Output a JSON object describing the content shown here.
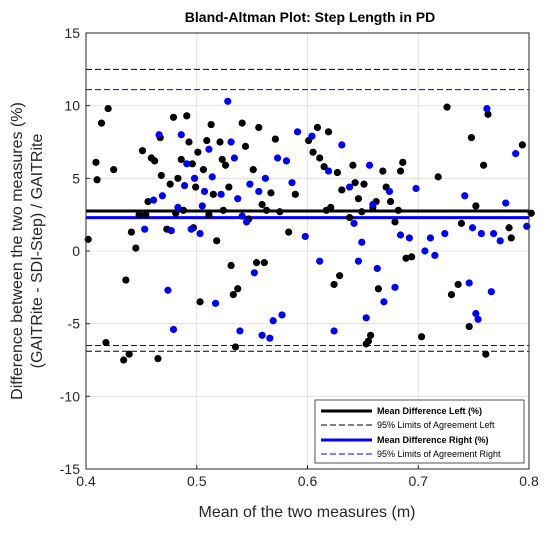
{
  "chart_data": {
    "type": "scatter",
    "title": "Bland-Altman Plot: Step Length in PD",
    "xlabel": "Mean of the two measures (m)",
    "ylabel_line1": "Difference between the two measures (%)",
    "ylabel_line2": "(GAITRite - SDI-Step) / GAITRite",
    "xlim": [
      0.4,
      0.8
    ],
    "ylim": [
      -15,
      15
    ],
    "xticks": [
      0.4,
      0.5,
      0.6,
      0.7,
      0.8
    ],
    "xtick_labels": [
      "0.4",
      "0.5",
      "0.6",
      "0.7",
      "0.8"
    ],
    "yticks": [
      -15,
      -10,
      -5,
      0,
      5,
      10,
      15
    ],
    "ytick_labels": [
      "-15",
      "-10",
      "-5",
      "0",
      "5",
      "10",
      "15"
    ],
    "grid": true,
    "legend_position": "bottom-right",
    "colors": {
      "left": "#000000",
      "right": "#0000ff"
    },
    "legend": [
      {
        "label": "Mean Difference Left (%)",
        "color": "#000000",
        "style": "solid"
      },
      {
        "label": "95% Limits of Agreement Left",
        "color": "#000000",
        "style": "dashed"
      },
      {
        "label": "Mean Difference Right (%)",
        "color": "#0000ff",
        "style": "solid"
      },
      {
        "label": "95% Limits of Agreement Right",
        "color": "#0000ff",
        "style": "dashed"
      }
    ],
    "reference_lines": [
      {
        "series": "left",
        "kind": "mean",
        "y": 2.75
      },
      {
        "series": "left",
        "kind": "upper_loa",
        "y": 12.5
      },
      {
        "series": "left",
        "kind": "lower_loa",
        "y": -6.9
      },
      {
        "series": "right",
        "kind": "mean",
        "y": 2.3
      },
      {
        "series": "right",
        "kind": "upper_loa",
        "y": 11.1
      },
      {
        "series": "right",
        "kind": "lower_loa",
        "y": -6.5
      }
    ],
    "series": [
      {
        "key": "left",
        "points": [
          [
            0.402,
            0.8
          ],
          [
            0.409,
            6.1
          ],
          [
            0.41,
            4.9
          ],
          [
            0.414,
            8.8
          ],
          [
            0.418,
            -6.3
          ],
          [
            0.42,
            9.8
          ],
          [
            0.425,
            5.6
          ],
          [
            0.434,
            -7.5
          ],
          [
            0.436,
            -2.0
          ],
          [
            0.439,
            -7.1
          ],
          [
            0.441,
            1.3
          ],
          [
            0.445,
            0.2
          ],
          [
            0.448,
            2.5
          ],
          [
            0.451,
            6.9
          ],
          [
            0.454,
            2.5
          ],
          [
            0.456,
            3.4
          ],
          [
            0.459,
            6.4
          ],
          [
            0.462,
            6.2
          ],
          [
            0.465,
            -7.4
          ],
          [
            0.467,
            7.8
          ],
          [
            0.468,
            5.2
          ],
          [
            0.473,
            1.5
          ],
          [
            0.476,
            4.6
          ],
          [
            0.479,
            9.2
          ],
          [
            0.481,
            2.6
          ],
          [
            0.483,
            5.0
          ],
          [
            0.486,
            6.3
          ],
          [
            0.488,
            2.8
          ],
          [
            0.491,
            9.3
          ],
          [
            0.493,
            7.5
          ],
          [
            0.496,
            6.0
          ],
          [
            0.497,
            1.6
          ],
          [
            0.499,
            4.4
          ],
          [
            0.501,
            6.8
          ],
          [
            0.503,
            -3.5
          ],
          [
            0.506,
            5.6
          ],
          [
            0.509,
            7.6
          ],
          [
            0.511,
            2.5
          ],
          [
            0.513,
            8.7
          ],
          [
            0.515,
            3.9
          ],
          [
            0.518,
            0.7
          ],
          [
            0.521,
            7.5
          ],
          [
            0.523,
            6.3
          ],
          [
            0.524,
            2.8
          ],
          [
            0.526,
            5.9
          ],
          [
            0.529,
            4.4
          ],
          [
            0.531,
            -1.0
          ],
          [
            0.533,
            -3.0
          ],
          [
            0.535,
            -6.6
          ],
          [
            0.537,
            -2.6
          ],
          [
            0.541,
            8.8
          ],
          [
            0.544,
            7.2
          ],
          [
            0.547,
            2.2
          ],
          [
            0.551,
            5.6
          ],
          [
            0.554,
            -0.8
          ],
          [
            0.556,
            8.5
          ],
          [
            0.559,
            3.2
          ],
          [
            0.561,
            -0.8
          ],
          [
            0.563,
            2.8
          ],
          [
            0.567,
            4.0
          ],
          [
            0.571,
            7.7
          ],
          [
            0.575,
            2.7
          ],
          [
            0.583,
            1.3
          ],
          [
            0.589,
            3.9
          ],
          [
            0.601,
            7.6
          ],
          [
            0.605,
            6.8
          ],
          [
            0.609,
            8.5
          ],
          [
            0.611,
            6.4
          ],
          [
            0.615,
            5.8
          ],
          [
            0.617,
            2.8
          ],
          [
            0.619,
            8.2
          ],
          [
            0.621,
            3.0
          ],
          [
            0.624,
            -2.3
          ],
          [
            0.627,
            5.4
          ],
          [
            0.629,
            -1.7
          ],
          [
            0.631,
            4.2
          ],
          [
            0.638,
            2.3
          ],
          [
            0.641,
            5.9
          ],
          [
            0.643,
            4.7
          ],
          [
            0.646,
            3.6
          ],
          [
            0.649,
            2.7
          ],
          [
            0.651,
            4.6
          ],
          [
            0.653,
            -6.4
          ],
          [
            0.655,
            -6.2
          ],
          [
            0.657,
            -5.8
          ],
          [
            0.659,
            3.0
          ],
          [
            0.662,
            3.4
          ],
          [
            0.664,
            -2.6
          ],
          [
            0.668,
            5.5
          ],
          [
            0.671,
            4.4
          ],
          [
            0.675,
            3.4
          ],
          [
            0.679,
            2.0
          ],
          [
            0.682,
            2.8
          ],
          [
            0.684,
            5.5
          ],
          [
            0.686,
            6.1
          ],
          [
            0.689,
            -0.5
          ],
          [
            0.694,
            -0.4
          ],
          [
            0.703,
            -5.9
          ],
          [
            0.718,
            5.1
          ],
          [
            0.726,
            9.9
          ],
          [
            0.73,
            -3.0
          ],
          [
            0.736,
            -2.3
          ],
          [
            0.739,
            1.9
          ],
          [
            0.746,
            -5.2
          ],
          [
            0.748,
            7.8
          ],
          [
            0.752,
            3.1
          ],
          [
            0.759,
            5.9
          ],
          [
            0.761,
            -7.1
          ],
          [
            0.763,
            9.4
          ],
          [
            0.782,
            1.6
          ],
          [
            0.784,
            0.9
          ],
          [
            0.794,
            7.3
          ],
          [
            0.802,
            2.6
          ]
        ]
      },
      {
        "key": "right",
        "points": [
          [
            0.453,
            1.5
          ],
          [
            0.461,
            3.5
          ],
          [
            0.466,
            8.0
          ],
          [
            0.469,
            3.8
          ],
          [
            0.474,
            -2.7
          ],
          [
            0.477,
            1.4
          ],
          [
            0.479,
            -5.4
          ],
          [
            0.483,
            3.0
          ],
          [
            0.486,
            8.0
          ],
          [
            0.489,
            4.5
          ],
          [
            0.491,
            6.0
          ],
          [
            0.495,
            1.5
          ],
          [
            0.498,
            5.0
          ],
          [
            0.503,
            1.2
          ],
          [
            0.505,
            3.1
          ],
          [
            0.507,
            4.1
          ],
          [
            0.511,
            7.0
          ],
          [
            0.514,
            5.1
          ],
          [
            0.517,
            -3.6
          ],
          [
            0.522,
            3.9
          ],
          [
            0.528,
            10.3
          ],
          [
            0.531,
            7.5
          ],
          [
            0.534,
            6.4
          ],
          [
            0.537,
            3.6
          ],
          [
            0.539,
            -5.5
          ],
          [
            0.541,
            2.4
          ],
          [
            0.545,
            2.0
          ],
          [
            0.548,
            4.6
          ],
          [
            0.552,
            -1.5
          ],
          [
            0.556,
            4.1
          ],
          [
            0.559,
            -5.8
          ],
          [
            0.562,
            5.0
          ],
          [
            0.566,
            -6.0
          ],
          [
            0.569,
            -4.8
          ],
          [
            0.573,
            6.4
          ],
          [
            0.577,
            -4.4
          ],
          [
            0.581,
            6.2
          ],
          [
            0.586,
            4.7
          ],
          [
            0.591,
            8.2
          ],
          [
            0.598,
            1.0
          ],
          [
            0.604,
            7.9
          ],
          [
            0.611,
            -0.7
          ],
          [
            0.619,
            5.5
          ],
          [
            0.624,
            -5.5
          ],
          [
            0.631,
            7.3
          ],
          [
            0.638,
            4.4
          ],
          [
            0.642,
            1.9
          ],
          [
            0.646,
            -0.7
          ],
          [
            0.649,
            0.6
          ],
          [
            0.653,
            -4.6
          ],
          [
            0.656,
            5.9
          ],
          [
            0.659,
            3.2
          ],
          [
            0.663,
            -1.2
          ],
          [
            0.669,
            -3.5
          ],
          [
            0.674,
            4.1
          ],
          [
            0.679,
            -2.5
          ],
          [
            0.684,
            1.1
          ],
          [
            0.692,
            0.9
          ],
          [
            0.698,
            4.3
          ],
          [
            0.706,
            0.0
          ],
          [
            0.711,
            0.9
          ],
          [
            0.715,
            -0.3
          ],
          [
            0.724,
            1.2
          ],
          [
            0.742,
            3.8
          ],
          [
            0.746,
            -2.2
          ],
          [
            0.749,
            1.6
          ],
          [
            0.752,
            -4.3
          ],
          [
            0.754,
            -4.7
          ],
          [
            0.757,
            1.2
          ],
          [
            0.762,
            9.8
          ],
          [
            0.766,
            -2.8
          ],
          [
            0.768,
            1.2
          ],
          [
            0.774,
            0.7
          ],
          [
            0.779,
            3.3
          ],
          [
            0.788,
            6.7
          ],
          [
            0.798,
            1.7
          ]
        ]
      }
    ]
  }
}
